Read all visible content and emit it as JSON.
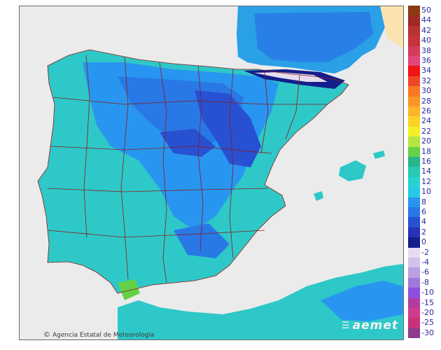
{
  "map": {
    "credit_text": "Agencia Estatal de Meteorología",
    "logo_text": "aemet"
  },
  "legend": {
    "entries": [
      {
        "label": "50",
        "color": "#8b3a10"
      },
      {
        "label": "44",
        "color": "#a02828"
      },
      {
        "label": "42",
        "color": "#b83232"
      },
      {
        "label": "40",
        "color": "#c8323c"
      },
      {
        "label": "38",
        "color": "#d23c5a"
      },
      {
        "label": "36",
        "color": "#e04678"
      },
      {
        "label": "34",
        "color": "#f01414"
      },
      {
        "label": "32",
        "color": "#f04628"
      },
      {
        "label": "30",
        "color": "#f87820"
      },
      {
        "label": "28",
        "color": "#fa9628"
      },
      {
        "label": "26",
        "color": "#fcb428"
      },
      {
        "label": "24",
        "color": "#fcd228"
      },
      {
        "label": "22",
        "color": "#f4f028"
      },
      {
        "label": "20",
        "color": "#b4e646"
      },
      {
        "label": "18",
        "color": "#64d246"
      },
      {
        "label": "16",
        "color": "#28b48c"
      },
      {
        "label": "14",
        "color": "#28c8b4"
      },
      {
        "label": "12",
        "color": "#28d2d2"
      },
      {
        "label": "10",
        "color": "#28c8e6"
      },
      {
        "label": "8",
        "color": "#2896f0"
      },
      {
        "label": "6",
        "color": "#2878e6"
      },
      {
        "label": "4",
        "color": "#2850d2"
      },
      {
        "label": "2",
        "color": "#2832b4"
      },
      {
        "label": "0",
        "color": "#141e8c"
      },
      {
        "label": "-2",
        "color": "#e6dcf0"
      },
      {
        "label": "-4",
        "color": "#d2c3eb"
      },
      {
        "label": "-6",
        "color": "#b9a0e1"
      },
      {
        "label": "-8",
        "color": "#a078dc"
      },
      {
        "label": "-10",
        "color": "#8c50dc"
      },
      {
        "label": "-15",
        "color": "#b43ca0"
      },
      {
        "label": "-20",
        "color": "#d23c8c"
      },
      {
        "label": "-25",
        "color": "#c83278"
      },
      {
        "label": "-30",
        "color": "#8c3c8c"
      }
    ]
  }
}
